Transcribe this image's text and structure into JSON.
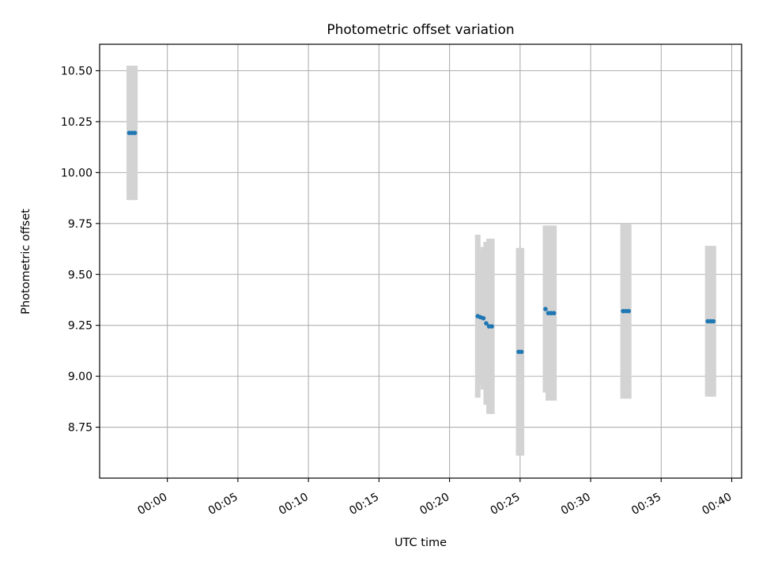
{
  "chart_data": {
    "type": "scatter",
    "title": "Photometric offset variation",
    "xlabel": "UTC time",
    "ylabel": "Photometric offset",
    "x_ticks": [
      "00:00",
      "00:05",
      "00:10",
      "00:15",
      "00:20",
      "00:25",
      "00:30",
      "00:35",
      "00:40"
    ],
    "y_ticks": [
      "8.75",
      "9.00",
      "9.25",
      "9.50",
      "9.75",
      "10.00",
      "10.25",
      "10.50"
    ],
    "xlim": [
      "-00:04.8",
      "00:40.7"
    ],
    "ylim": [
      8.5,
      10.63
    ],
    "grid": true,
    "colors": {
      "points": "#1f77b4",
      "error_bars": "#d3d3d3",
      "grid": "#b0b0b0"
    },
    "series": [
      {
        "points": [
          {
            "x": "-00:02.7",
            "y": 10.195,
            "err": 0.33
          },
          {
            "x": "-00:02.5",
            "y": 10.195,
            "err": 0.33
          },
          {
            "x": "-00:02.3",
            "y": 10.195,
            "err": 0.33
          },
          {
            "x": "00:22.0",
            "y": 9.295,
            "err": 0.4
          },
          {
            "x": "00:22.2",
            "y": 9.29,
            "err": 0.33
          },
          {
            "x": "00:22.4",
            "y": 9.285,
            "err": 0.35
          },
          {
            "x": "00:22.6",
            "y": 9.26,
            "err": 0.4
          },
          {
            "x": "00:22.8",
            "y": 9.245,
            "err": 0.43
          },
          {
            "x": "00:23.0",
            "y": 9.245,
            "err": 0.43
          },
          {
            "x": "00:24.9",
            "y": 9.12,
            "err": 0.51
          },
          {
            "x": "00:25.1",
            "y": 9.12,
            "err": 0.51
          },
          {
            "x": "00:26.8",
            "y": 9.33,
            "err": 0.41
          },
          {
            "x": "00:27.0",
            "y": 9.31,
            "err": 0.43
          },
          {
            "x": "00:27.2",
            "y": 9.31,
            "err": 0.43
          },
          {
            "x": "00:27.4",
            "y": 9.31,
            "err": 0.43
          },
          {
            "x": "00:32.3",
            "y": 9.32,
            "err": 0.43
          },
          {
            "x": "00:32.5",
            "y": 9.32,
            "err": 0.43
          },
          {
            "x": "00:32.7",
            "y": 9.32,
            "err": 0.43
          },
          {
            "x": "00:38.3",
            "y": 9.27,
            "err": 0.37
          },
          {
            "x": "00:38.5",
            "y": 9.27,
            "err": 0.37
          },
          {
            "x": "00:38.7",
            "y": 9.27,
            "err": 0.37
          }
        ]
      }
    ]
  }
}
